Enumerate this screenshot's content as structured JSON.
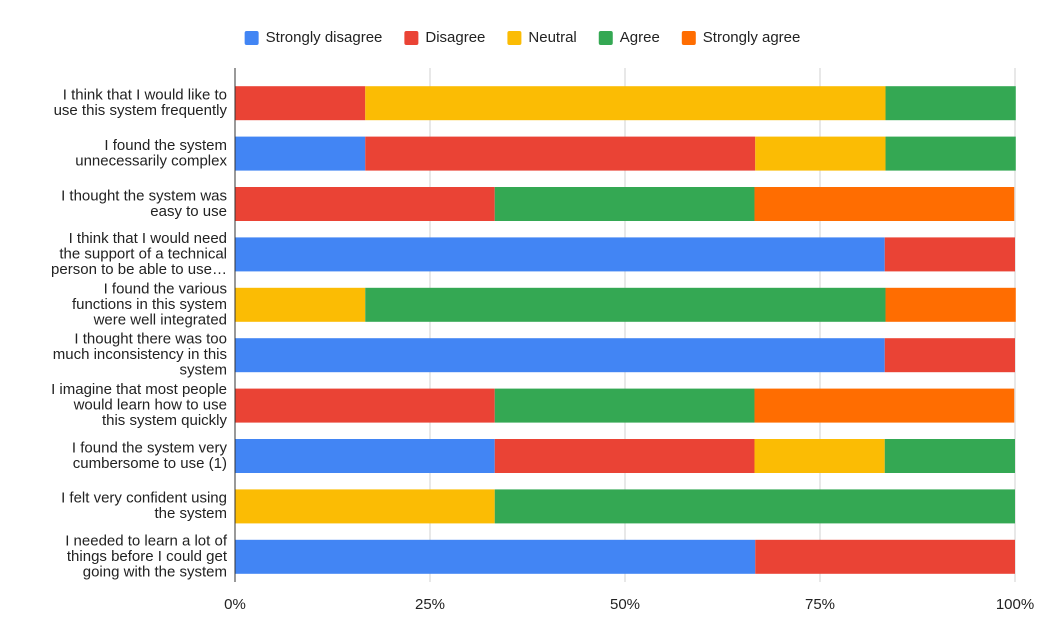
{
  "chart_data": {
    "type": "stacked_bar_horizontal",
    "categories": [
      "I think that I would like to use this system frequently",
      "I found the system unnecessarily complex",
      "I thought the system was easy to use",
      "I think that I would need the support of a technical person to be able to use…",
      "I found the various functions in this system were well integrated",
      "I thought there was too much inconsistency in this system",
      "I imagine that most people would learn how to use this system quickly",
      "I found the system very cumbersome to use (1)",
      "I felt very confident using the system",
      "I needed to learn a lot of things before I could get going with the system"
    ],
    "series": [
      {
        "name": "Strongly disagree",
        "color": "#4285f4",
        "values": [
          0,
          16.7,
          0,
          83.3,
          0,
          83.3,
          0,
          33.3,
          0,
          66.7
        ]
      },
      {
        "name": "Disagree",
        "color": "#ea4335",
        "values": [
          16.7,
          50,
          33.3,
          16.7,
          0,
          16.7,
          33.3,
          33.3,
          0,
          33.3
        ]
      },
      {
        "name": "Neutral",
        "color": "#fbbc04",
        "values": [
          66.7,
          16.7,
          0,
          0,
          16.7,
          0,
          0,
          16.7,
          33.3,
          0
        ]
      },
      {
        "name": "Agree",
        "color": "#34a853",
        "values": [
          16.7,
          16.7,
          33.3,
          0,
          66.7,
          0,
          33.3,
          16.7,
          66.7,
          0
        ]
      },
      {
        "name": "Strongly agree",
        "color": "#ff6d01",
        "values": [
          0,
          0,
          33.3,
          0,
          16.7,
          0,
          33.3,
          0,
          0,
          0
        ]
      }
    ],
    "xlim": [
      0,
      100
    ],
    "xticks": [
      {
        "value": 0,
        "label": "0%"
      },
      {
        "value": 25,
        "label": "25%"
      },
      {
        "value": 50,
        "label": "50%"
      },
      {
        "value": 75,
        "label": "75%"
      },
      {
        "value": 100,
        "label": "100%"
      }
    ],
    "grid": true,
    "legend": "top"
  }
}
